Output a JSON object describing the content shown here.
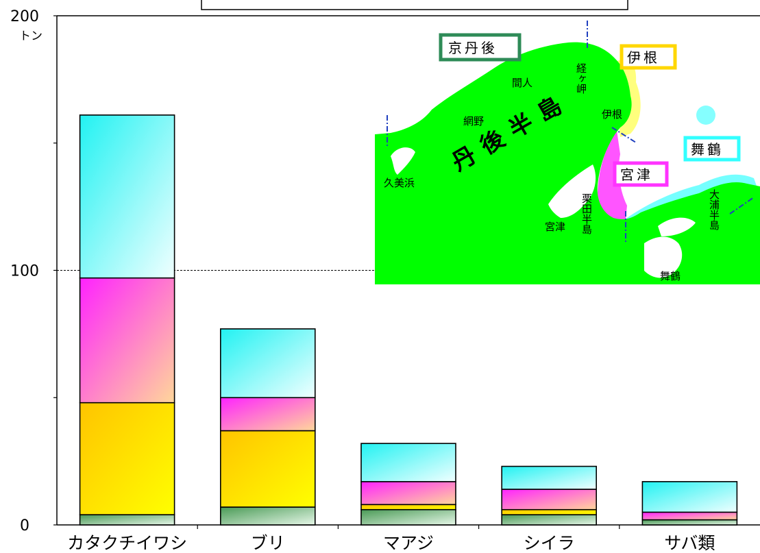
{
  "chart_data": {
    "type": "bar",
    "stacked": true,
    "title": "",
    "unit_label": "トン",
    "ylim": [
      0,
      200
    ],
    "yticks": [
      0,
      100,
      200
    ],
    "ytick_labels": [
      "0",
      "100",
      "200"
    ],
    "reference_line": 100,
    "categories": [
      "カタクチイワシ",
      "ブリ",
      "マアジ",
      "シイラ",
      "サバ類"
    ],
    "series": [
      {
        "name": "京丹後",
        "color": "#2e8b57",
        "values": [
          4,
          7,
          6,
          4,
          2
        ]
      },
      {
        "name": "伊根",
        "color": "#ffd700",
        "values": [
          44,
          30,
          2,
          2,
          0
        ]
      },
      {
        "name": "宮津",
        "color": "#ff33ff",
        "values": [
          49,
          13,
          9,
          8,
          3
        ]
      },
      {
        "name": "舞鶴",
        "color": "#33ffff",
        "values": [
          64,
          27,
          15,
          9,
          12
        ]
      }
    ]
  },
  "map": {
    "regions": {
      "kyotango": "京丹後",
      "ine": "伊根",
      "miyazu": "宮津",
      "maizuru": "舞鶴"
    },
    "peninsula": "丹後半島",
    "places": {
      "kumihama": "久美浜",
      "amino": "網野",
      "taiza": "間人",
      "kyogamisaki": "経ヶ岬",
      "ine": "伊根",
      "miyazu": "宮津",
      "kuda": "栗田半島",
      "oura": "大浦半島",
      "maizuru": "舞鶴"
    }
  }
}
